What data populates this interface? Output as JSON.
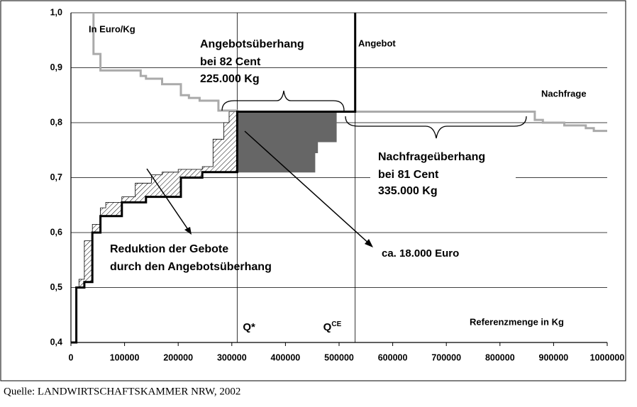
{
  "chart_data": {
    "type": "line",
    "xlim": [
      0,
      1000000
    ],
    "ylim": [
      0.4,
      1.0
    ],
    "xticks": [
      0,
      100000,
      200000,
      300000,
      400000,
      500000,
      600000,
      700000,
      800000,
      900000,
      1000000
    ],
    "yticks": [
      {
        "value": 0.4,
        "label": "0,4"
      },
      {
        "value": 0.5,
        "label": "0,5"
      },
      {
        "value": 0.6,
        "label": "0,6"
      },
      {
        "value": 0.7,
        "label": "0,7"
      },
      {
        "value": 0.8,
        "label": "0,8"
      },
      {
        "value": 0.9,
        "label": "0,9"
      },
      {
        "value": 1.0,
        "label": "1,0"
      }
    ],
    "grid": true,
    "series": [
      {
        "style": "area",
        "fill": "hatch",
        "color": "#000000",
        "x": [
          15000,
          15000,
          25000,
          25000,
          40000,
          40000,
          55000,
          55000,
          65000,
          65000,
          95000,
          95000,
          120000,
          120000,
          150000,
          150000,
          170000,
          170000,
          200000,
          200000,
          245000,
          245000,
          265000,
          265000,
          285000,
          285000,
          295000,
          295000,
          310000,
          310000,
          245000,
          245000,
          205000,
          205000,
          140000,
          140000,
          95000,
          95000,
          55000,
          55000,
          40000,
          40000,
          25000,
          25000
        ],
        "values": [
          0.5,
          0.515,
          0.515,
          0.585,
          0.585,
          0.615,
          0.615,
          0.645,
          0.645,
          0.655,
          0.655,
          0.665,
          0.665,
          0.69,
          0.69,
          0.705,
          0.705,
          0.71,
          0.71,
          0.715,
          0.715,
          0.72,
          0.72,
          0.77,
          0.77,
          0.8,
          0.8,
          0.82,
          0.82,
          0.71,
          0.71,
          0.7,
          0.7,
          0.665,
          0.665,
          0.655,
          0.655,
          0.63,
          0.63,
          0.6,
          0.6,
          0.51,
          0.51,
          0.5
        ]
      },
      {
        "style": "area",
        "fill": "solid",
        "color": "#666666",
        "x": [
          310000,
          495000,
          495000,
          460000,
          460000,
          455000,
          455000,
          310000
        ],
        "values": [
          0.82,
          0.82,
          0.765,
          0.765,
          0.745,
          0.745,
          0.71,
          0.71
        ]
      },
      {
        "style": "line",
        "color": "#aaaaaa",
        "x": [
          42000,
          42000,
          55000,
          55000,
          130000,
          130000,
          140000,
          140000,
          170000,
          170000,
          205000,
          205000,
          220000,
          220000,
          240000,
          240000,
          275000,
          275000,
          310000,
          310000,
          865000,
          865000,
          880000,
          880000,
          920000,
          920000,
          960000,
          960000,
          975000,
          975000,
          1000000
        ],
        "values": [
          1.0,
          0.925,
          0.925,
          0.895,
          0.895,
          0.885,
          0.885,
          0.88,
          0.88,
          0.87,
          0.87,
          0.85,
          0.85,
          0.845,
          0.845,
          0.84,
          0.84,
          0.822,
          0.822,
          0.82,
          0.82,
          0.805,
          0.805,
          0.8,
          0.8,
          0.795,
          0.795,
          0.79,
          0.79,
          0.785,
          0.785
        ]
      },
      {
        "style": "line",
        "color": "#000000",
        "x": [
          0,
          10000,
          10000,
          25000,
          25000,
          40000,
          40000,
          55000,
          55000,
          95000,
          95000,
          140000,
          140000,
          205000,
          205000,
          245000,
          245000,
          310000,
          310000,
          530000,
          530000
        ],
        "values": [
          0.4,
          0.4,
          0.5,
          0.5,
          0.51,
          0.51,
          0.6,
          0.6,
          0.63,
          0.63,
          0.655,
          0.655,
          0.665,
          0.665,
          0.7,
          0.7,
          0.71,
          0.71,
          0.82,
          0.82,
          1.0
        ]
      }
    ],
    "vlines": [
      {
        "value": 310000,
        "label": "Q*"
      },
      {
        "value": 530000,
        "label": "Q",
        "sup": "CE"
      }
    ],
    "annotations": [
      "In Euro/Kg",
      "Angebotsüberhang",
      "bei 82 Cent",
      "225.000 Kg",
      "Angebot",
      "Nachfrage",
      "Nachfrageüberhang",
      "bei 81 Cent",
      "335.000 Kg",
      "Reduktion der Gebote",
      "durch den Angebotsüberhang",
      "ca. 18.000 Euro",
      "Referenzmenge in Kg"
    ],
    "source": "Quelle: LANDWIRTSCHAFTSKAMMER NRW, 2002"
  }
}
